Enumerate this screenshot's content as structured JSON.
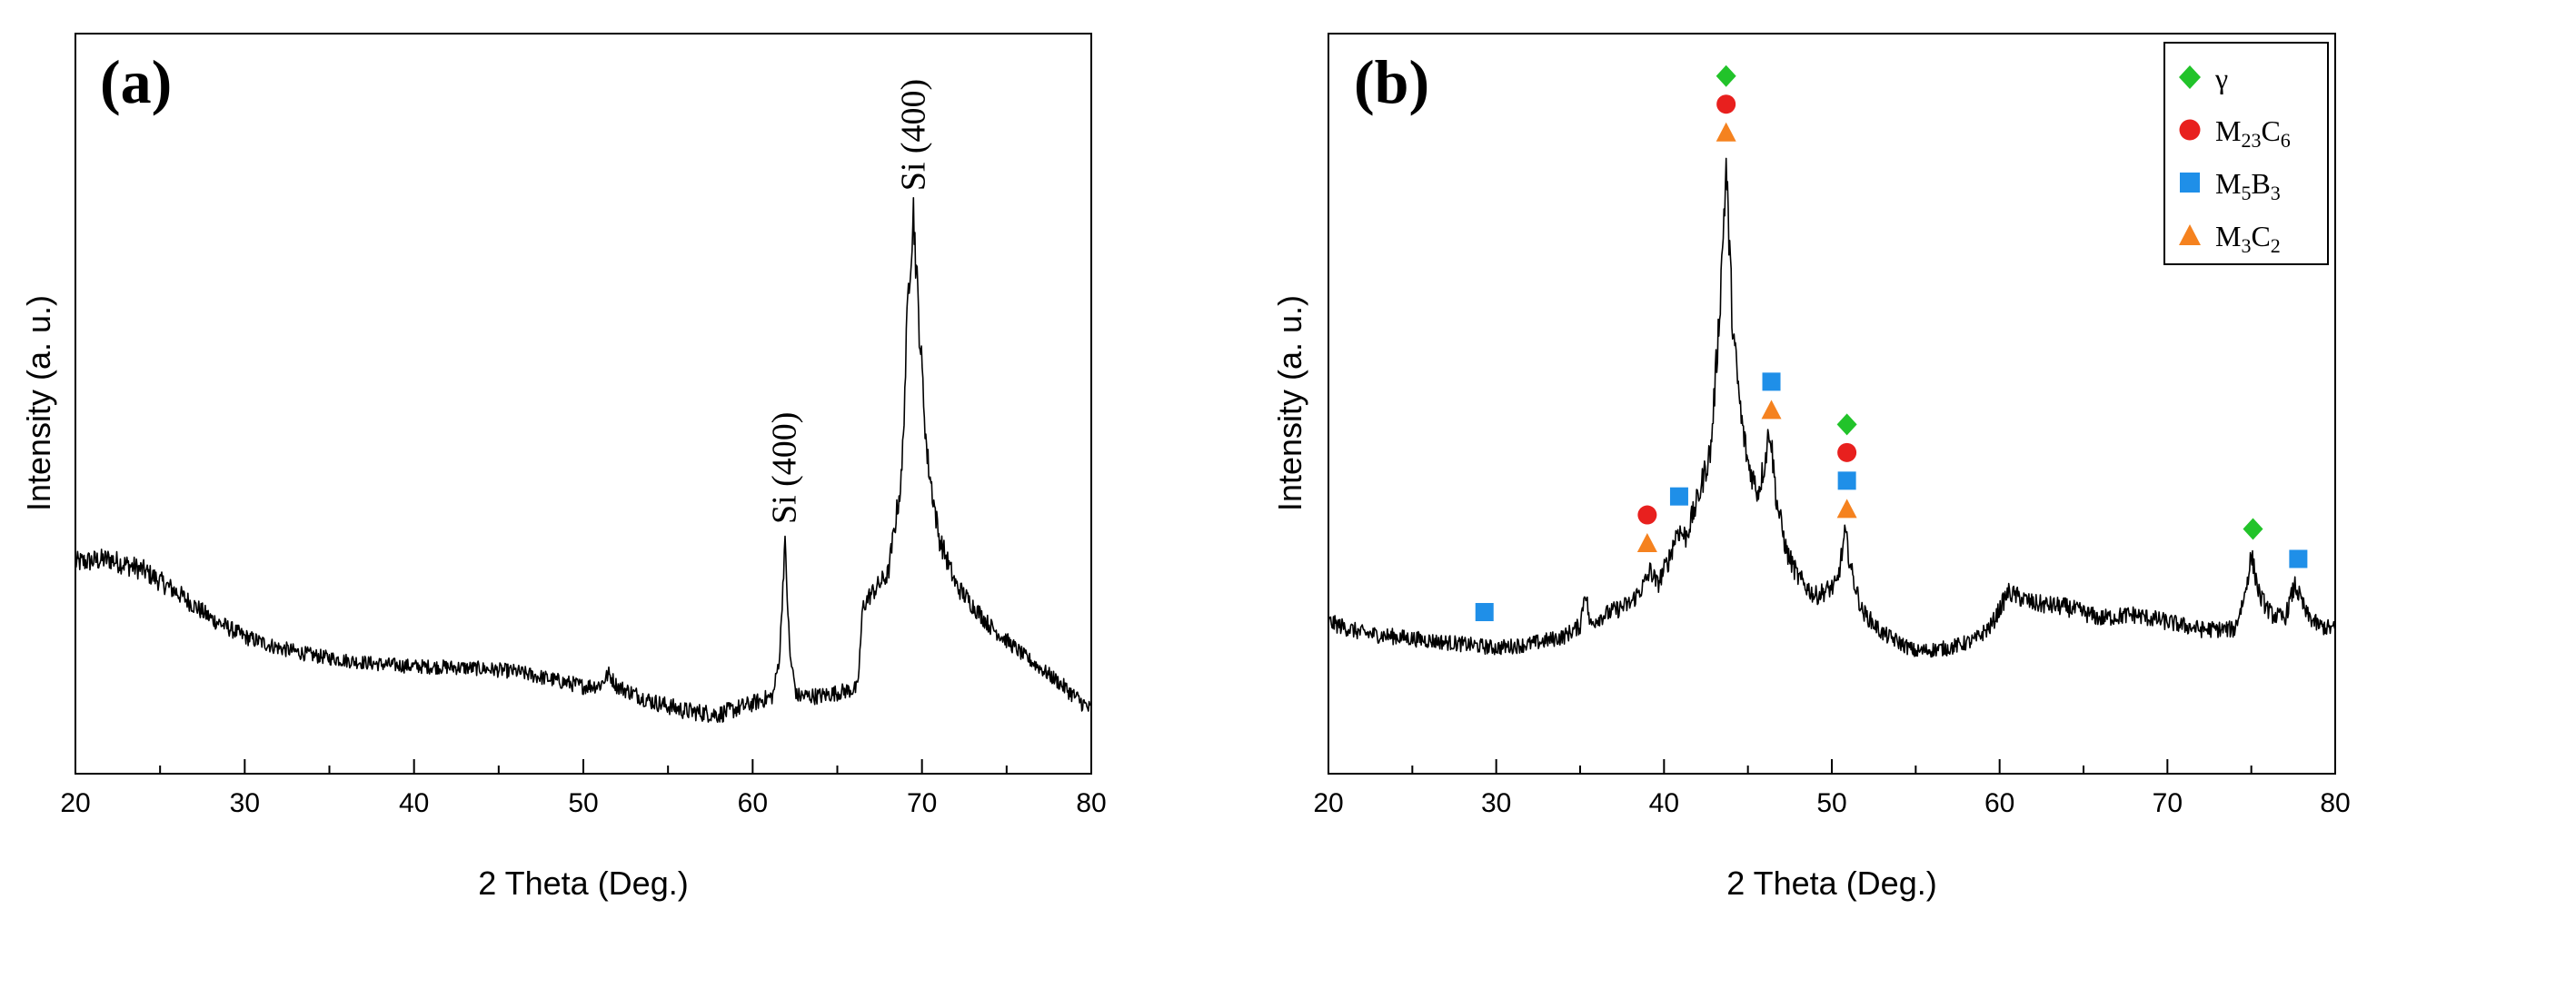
{
  "chart_data": [
    {
      "type": "line",
      "panel_label": "(a)",
      "xlabel": "2 Theta (Deg.)",
      "ylabel": "Intensity (a. u.)",
      "xlim": [
        20,
        80
      ],
      "ylim": [
        0,
        100
      ],
      "xticks": [
        20,
        30,
        40,
        50,
        60,
        70,
        80
      ],
      "y_tick_labels": false,
      "grid": false,
      "series": [
        {
          "color": "#000000",
          "x": [
            20,
            22,
            24,
            26,
            28,
            30,
            32,
            34,
            36,
            38,
            40,
            42,
            44,
            46,
            48,
            50,
            51.0,
            51.5,
            52.0,
            54,
            56,
            58,
            60,
            61.2,
            61.6,
            61.9,
            62.2,
            62.6,
            64,
            66.2,
            66.5,
            66.9,
            68.0,
            68.8,
            69.2,
            69.5,
            69.8,
            70.3,
            71,
            72,
            74,
            76,
            78,
            80
          ],
          "y": [
            28.5,
            29.0,
            27.5,
            24.5,
            21.0,
            18.5,
            17.0,
            16.0,
            15.3,
            14.8,
            14.5,
            14.4,
            14.2,
            13.8,
            12.8,
            11.8,
            12.0,
            13.5,
            11.8,
            9.8,
            8.5,
            8.0,
            9.5,
            10.5,
            16.0,
            31.5,
            16.0,
            10.5,
            10.5,
            11.5,
            22.5,
            24.0,
            27.0,
            40.0,
            66.0,
            76.0,
            62.0,
            43.0,
            32.0,
            25.5,
            20.0,
            16.0,
            12.5,
            8.5
          ]
        }
      ],
      "annotations": [
        {
          "text": "Si (400)",
          "x": 61.9,
          "y": 33
        },
        {
          "text": "Si (400)",
          "x": 69.5,
          "y": 78
        }
      ]
    },
    {
      "type": "line",
      "panel_label": "(b)",
      "xlabel": "2 Theta (Deg.)",
      "ylabel": "Intensity (a. u.)",
      "xlim": [
        20,
        80
      ],
      "ylim": [
        0,
        100
      ],
      "xticks": [
        20,
        30,
        40,
        50,
        60,
        70,
        80
      ],
      "y_tick_labels": false,
      "grid": false,
      "legend_position": "top-right",
      "legend": [
        {
          "label": "γ",
          "marker": "diamond",
          "color": "#22c32a"
        },
        {
          "label": "M",
          "sub": "23",
          "label2": "C",
          "sub2": "6",
          "marker": "circle",
          "color": "#e8201e"
        },
        {
          "label": "M",
          "sub": "5",
          "label2": "B",
          "sub2": "3",
          "marker": "square",
          "color": "#1f8fe8"
        },
        {
          "label": "M",
          "sub": "3",
          "label2": "C",
          "sub2": "2",
          "marker": "triangle",
          "color": "#f5821f"
        }
      ],
      "series": [
        {
          "color": "#000000",
          "x": [
            20,
            22,
            24,
            26,
            28,
            30,
            32,
            34,
            35.0,
            35.3,
            35.6,
            36,
            37,
            38,
            38.8,
            39.2,
            39.6,
            40.3,
            40.8,
            41.3,
            42.0,
            42.8,
            43.3,
            43.7,
            44.1,
            44.6,
            45.0,
            45.6,
            46.0,
            46.3,
            46.7,
            47.3,
            48,
            49,
            50.3,
            50.8,
            51.2,
            51.8,
            53,
            55,
            57,
            58.5,
            59.5,
            60.5,
            62,
            64,
            66,
            68,
            70,
            72,
            74,
            74.6,
            75.0,
            75.5,
            76.2,
            77,
            77.6,
            78.3,
            79,
            80
          ],
          "y": [
            20.5,
            19.0,
            18.5,
            18.0,
            17.5,
            17.0,
            17.5,
            18.5,
            20.0,
            25.0,
            20.0,
            21.0,
            22.0,
            23.0,
            25.5,
            27.5,
            25.5,
            29.0,
            33.0,
            32.0,
            37.0,
            44.0,
            62.0,
            82.0,
            60.0,
            48.0,
            42.0,
            38.0,
            42.0,
            47.0,
            37.0,
            30.0,
            26.5,
            24.0,
            25.5,
            32.5,
            27.0,
            22.0,
            19.0,
            16.5,
            17.0,
            18.0,
            20.0,
            24.5,
            23.0,
            22.5,
            21.0,
            21.5,
            20.5,
            19.5,
            19.5,
            24.0,
            29.5,
            24.0,
            21.5,
            21.0,
            25.5,
            21.5,
            20.0,
            19.5
          ]
        }
      ],
      "peak_markers": [
        {
          "x": 29.3,
          "markers": [
            "square"
          ]
        },
        {
          "x": 39.0,
          "markers": [
            "circle",
            "triangle"
          ]
        },
        {
          "x": 40.9,
          "markers": [
            "square"
          ]
        },
        {
          "x": 43.7,
          "markers": [
            "diamond",
            "circle",
            "triangle"
          ]
        },
        {
          "x": 46.4,
          "markers": [
            "square",
            "triangle"
          ]
        },
        {
          "x": 50.9,
          "markers": [
            "diamond",
            "circle",
            "square",
            "triangle"
          ]
        },
        {
          "x": 75.1,
          "markers": [
            "diamond"
          ]
        },
        {
          "x": 77.8,
          "markers": [
            "square"
          ]
        }
      ]
    }
  ]
}
